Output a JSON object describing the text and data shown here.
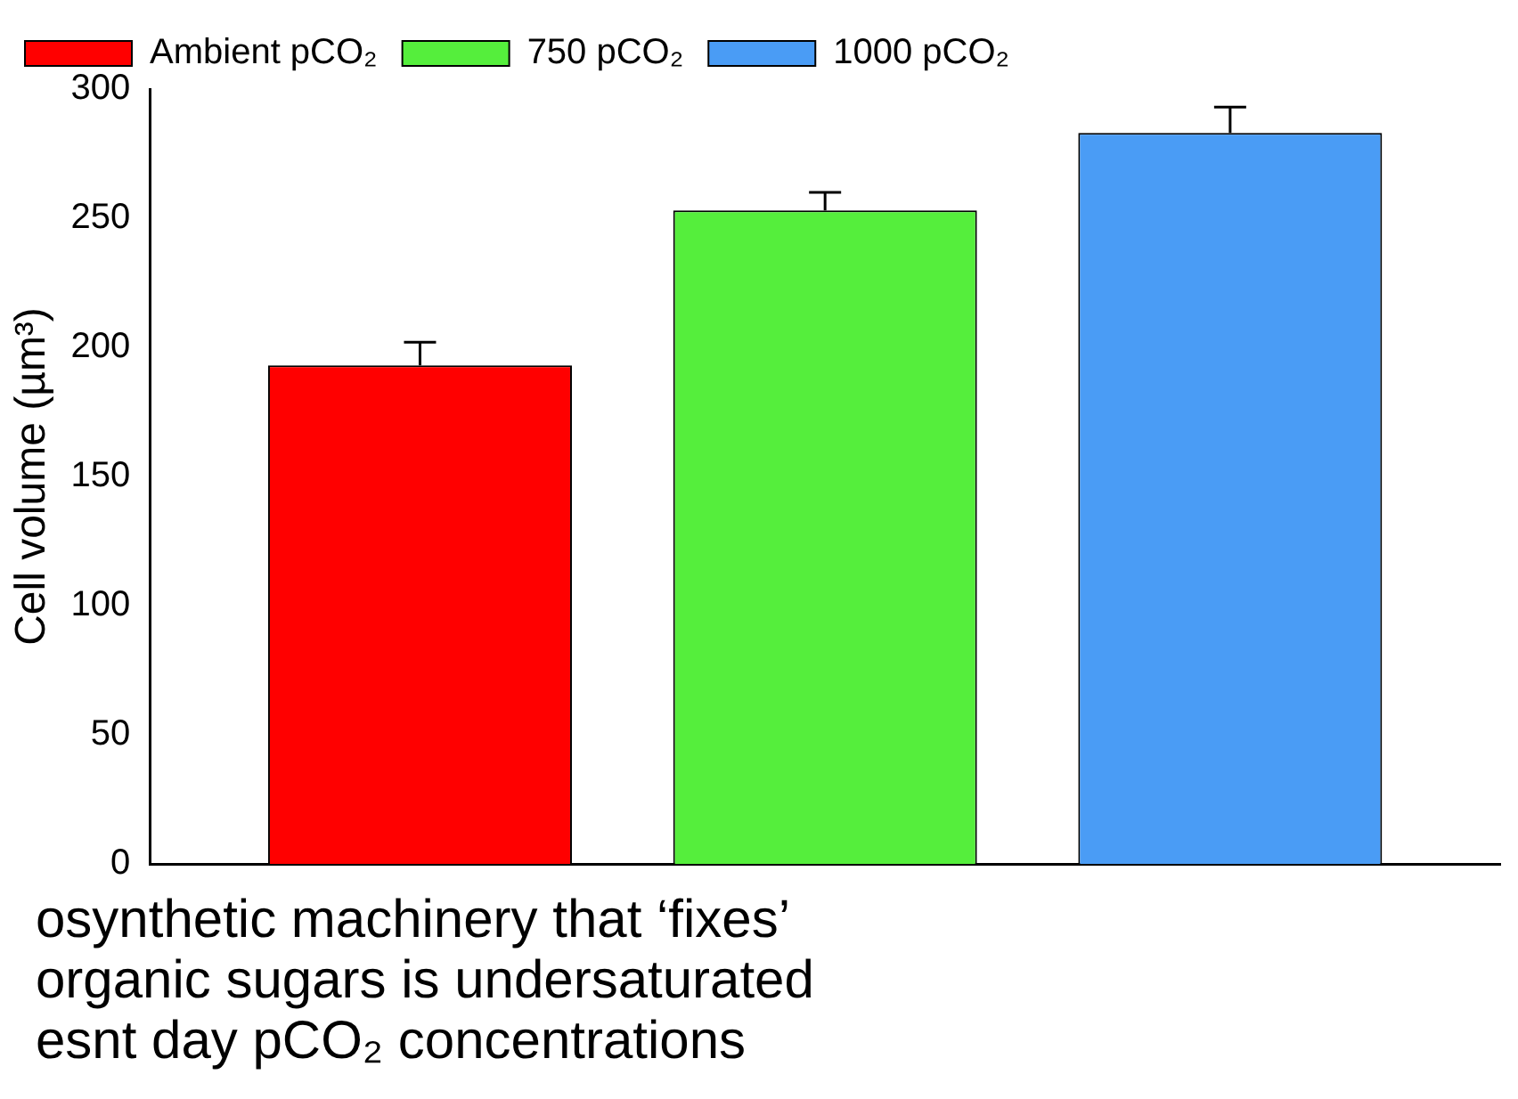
{
  "chart_data": {
    "type": "bar",
    "ylabel": "Cell volume (µm³)",
    "categories": [
      null
    ],
    "series": [
      {
        "name": "Ambient pCO₂",
        "color": "#ff0000",
        "values": [
          193
        ],
        "errors": [
          9
        ]
      },
      {
        "name": "750 pCO₂",
        "color": "#55ee3c",
        "values": [
          253
        ],
        "errors": [
          7
        ]
      },
      {
        "name": "1000 pCO₂",
        "color": "#4a9cf5",
        "values": [
          283
        ],
        "errors": [
          10
        ]
      }
    ],
    "ylim": [
      0,
      300
    ],
    "yticks": [
      0,
      50,
      100,
      150,
      200,
      250,
      300
    ],
    "grid": false,
    "legend": "top left",
    "tick_labels": "y",
    "annotations": [
      "osynthetic machinery that ‘fixes’",
      "organic sugars is undersaturated",
      "esnt day pCO₂ concentrations"
    ]
  }
}
